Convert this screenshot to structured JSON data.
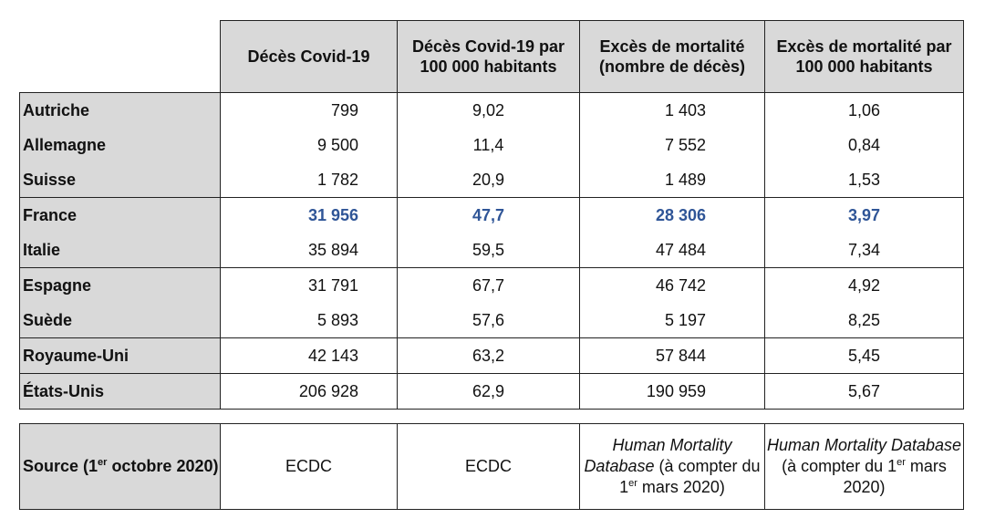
{
  "headers": [
    "",
    "Décès Covid-19",
    "Décès Covid-19 par 100 000 habitants",
    "Excès de mortalité (nombre de décès)",
    "Excès de mortalité par 100 000 habitants"
  ],
  "rows": [
    {
      "country": "Autriche",
      "deaths": "799",
      "deaths_per_100k": "9,02",
      "excess": "1 403",
      "excess_per_100k": "1,06"
    },
    {
      "country": "Allemagne",
      "deaths": "9 500",
      "deaths_per_100k": "11,4",
      "excess": "7 552",
      "excess_per_100k": "0,84"
    },
    {
      "country": "Suisse",
      "deaths": "1 782",
      "deaths_per_100k": "20,9",
      "excess": "1 489",
      "excess_per_100k": "1,53"
    },
    {
      "country": "France",
      "deaths": "31 956",
      "deaths_per_100k": "47,7",
      "excess": "28 306",
      "excess_per_100k": "3,97"
    },
    {
      "country": "Italie",
      "deaths": "35 894",
      "deaths_per_100k": "59,5",
      "excess": "47 484",
      "excess_per_100k": "7,34"
    },
    {
      "country": "Espagne",
      "deaths": "31 791",
      "deaths_per_100k": "67,7",
      "excess": "46 742",
      "excess_per_100k": "4,92"
    },
    {
      "country": "Suède",
      "deaths": "5 893",
      "deaths_per_100k": "57,6",
      "excess": "5 197",
      "excess_per_100k": "8,25"
    },
    {
      "country": "Royaume-Uni",
      "deaths": "42 143",
      "deaths_per_100k": "63,2",
      "excess": "57 844",
      "excess_per_100k": "5,45"
    },
    {
      "country": "États-Unis",
      "deaths": "206 928",
      "deaths_per_100k": "62,9",
      "excess": "190 959",
      "excess_per_100k": "5,67"
    }
  ],
  "highlight_color": "#2f5597",
  "source": {
    "label_pre": "Source (1",
    "label_sup": "er",
    "label_post": " octobre 2020)",
    "ecdc_1": "ECDC",
    "ecdc_2": "ECDC",
    "hmd_italic": "Human Mortality Database",
    "hmd_pre": " (à compter du 1",
    "hmd_sup": "er",
    "hmd_post": " mars 2020)"
  }
}
